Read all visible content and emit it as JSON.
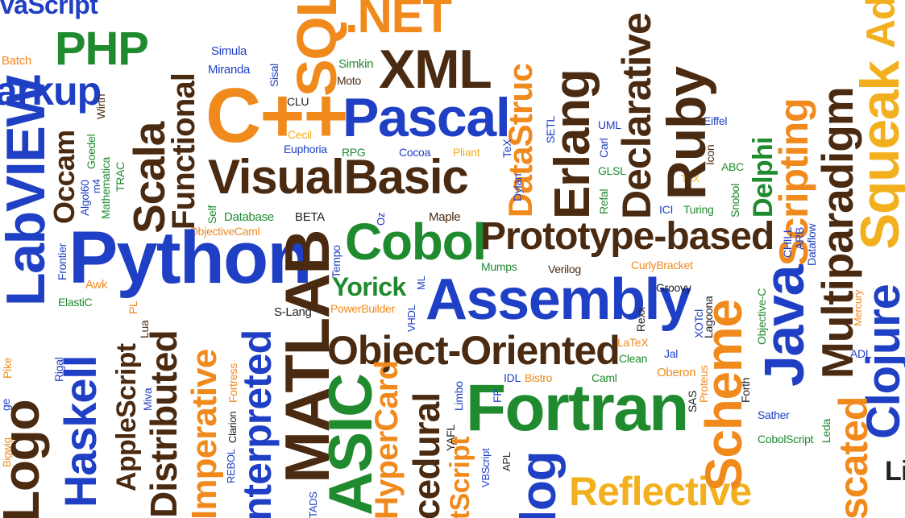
{
  "words": {
    "vascript": "vaScript",
    "php": "PHP",
    "markup": "arkup",
    "batch": "Batch",
    "simula": "Simula",
    "miranda": "Miranda",
    "sisal": "Sisal",
    "functional": "Functional",
    "net": ".NET",
    "sql": "SQL",
    "xml": "XML",
    "simkin": "Simkin",
    "moto": "Moto",
    "cplusplus": "C++",
    "clu": "CLU",
    "pascal": "Pascal",
    "datastruc": "DataStruc",
    "erlang": "Erlang",
    "declarative": "Declarative",
    "ruby": "Ruby",
    "multiparadigm": "Multiparadigm",
    "scripting": "Scripting",
    "squeak": "Squeak",
    "ada": "Ada",
    "labview": "LabVIEW",
    "wirth": "Wirth",
    "goedel": "Goedel",
    "occam": "Occam",
    "algol60": "Algol60",
    "m4": "m4",
    "mathematica": "Mathematica",
    "trac": "TRAC",
    "scala": "Scala",
    "visualbasic": "VisualBasic",
    "cecil": "Cecil",
    "euphoria": "Euphoria",
    "rpg": "RPG",
    "cocoa": "Cocoa",
    "pliant": "Pliant",
    "dylan": "Dylan",
    "tex": "TeX",
    "setl": "SETL",
    "uml": "UML",
    "carl": "Carl",
    "glsl": "GLSL",
    "eiffel": "Eiffel",
    "t3x": "T3X",
    "icon": "Icon",
    "abc": "ABC",
    "delphi": "Delphi",
    "snobol": "Snobol",
    "refal": "Refal",
    "ici": "ICI",
    "turing": "Turing",
    "self": "Self",
    "database": "Database",
    "beta": "BETA",
    "objectivecaml": "ObjectiveCaml",
    "python": "Python",
    "oz": "Oz",
    "maple": "Maple",
    "tempo": "Tempo",
    "cobol": "Cobol",
    "prototype": "Prototype-based",
    "matlab": "MATLAB",
    "mumps": "Mumps",
    "verilog": "Verilog",
    "curlybracket": "CurlyBracket",
    "chill": "CHILL",
    "arb": "ARB",
    "dataflow": "Dataflow",
    "java": "Java",
    "clojure": "Clojure",
    "frontier": "Frontier",
    "awk": "Awk",
    "elastic": "ElastiC",
    "pl": "PL",
    "lua": "Lua",
    "yorick": "Yorick",
    "ml": "ML",
    "powerbuilder": "PowerBuilder",
    "slang": "S-Lang",
    "vhdl": "VHDL",
    "assembly": "Assembly",
    "groovy": "Groovy",
    "rexx": "Rexx",
    "xotcl": "XOTcl",
    "lagoona": "Lagoona",
    "objectivec": "Objective-C",
    "mercury": "Mercury",
    "haskell": "Haskell",
    "rigal": "Rigal",
    "applescript": "AppleScript",
    "miva": "Miva",
    "distributed": "Distributed",
    "imperative": "Imperative",
    "fortress": "Fortress",
    "interpreted": "Interpreted",
    "objectoriented": "Object-Oriented",
    "latex": "LaTeX",
    "clean": "Clean",
    "jal": "Jal",
    "oberon": "Oberon",
    "proteus": "Proteus",
    "forth": "Forth",
    "scheme": "Scheme",
    "adl": "ADL",
    "logo": "Logo",
    "pike": "Pike",
    "ge": "ge",
    "bigwig": "Bigwig",
    "clarion": "Clarion",
    "rebol": "REBOL",
    "tads": "TADS",
    "asic": "ASIC",
    "hypercard": "HyperCard",
    "cedural": "cedural",
    "tscript": "tScript",
    "limbo": "Limbo",
    "yafl": "YAFL",
    "fp": "FP",
    "idl": "IDL",
    "bistro": "Bistro",
    "caml": "Caml",
    "vbscript": "VBScript",
    "apl": "APL",
    "fortran": "Fortran",
    "sas": "SAS",
    "leda": "Leda",
    "sather": "Sather",
    "cobolscript": "CobolScript",
    "log": "log",
    "reflective": "Reflective",
    "scated": "scated",
    "lis": "Lis"
  }
}
